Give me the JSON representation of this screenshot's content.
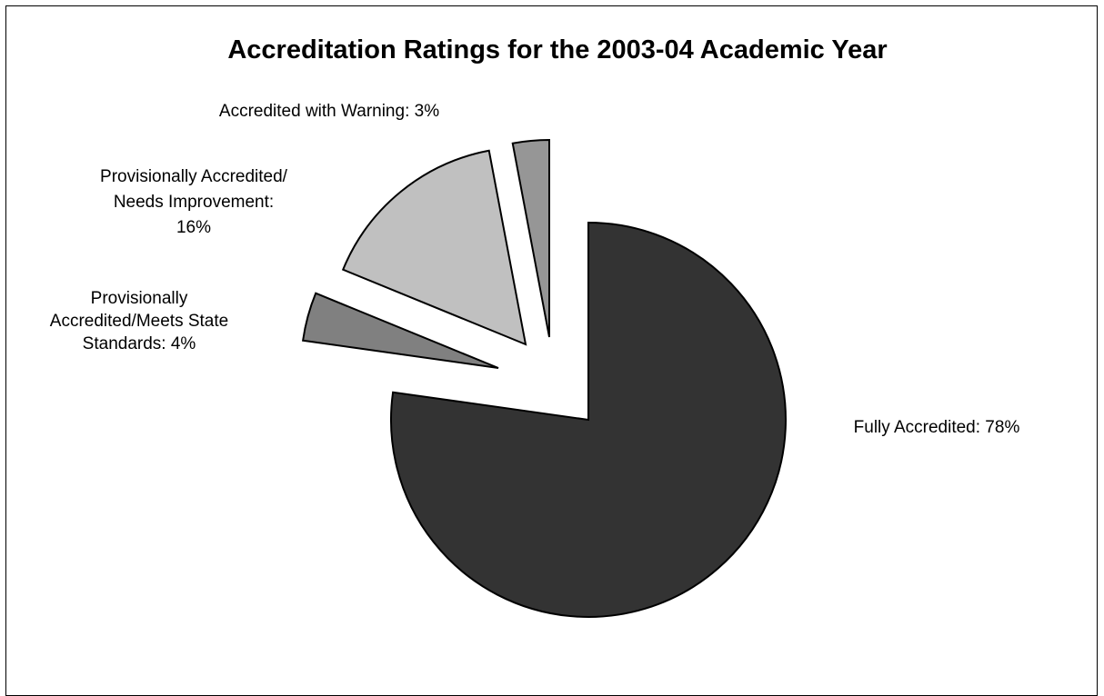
{
  "chart_data": {
    "type": "pie",
    "title": "Accreditation Ratings for the 2003-04 Academic Year",
    "slices": [
      {
        "label": [
          "Fully Accredited: 78%"
        ],
        "value": 78,
        "color": "#333333"
      },
      {
        "label": [
          "Provisionally",
          "Accredited/Meets State",
          "Standards: 4%"
        ],
        "value": 4,
        "color": "#808080"
      },
      {
        "label": [
          "Provisionally Accredited/",
          "Needs Improvement:",
          "16%"
        ],
        "value": 16,
        "color": "#c0c0c0"
      },
      {
        "label": [
          "Accredited with Warning: 3%"
        ],
        "value": 3,
        "color": "#969696"
      }
    ],
    "exploded": true,
    "legend": "none"
  }
}
